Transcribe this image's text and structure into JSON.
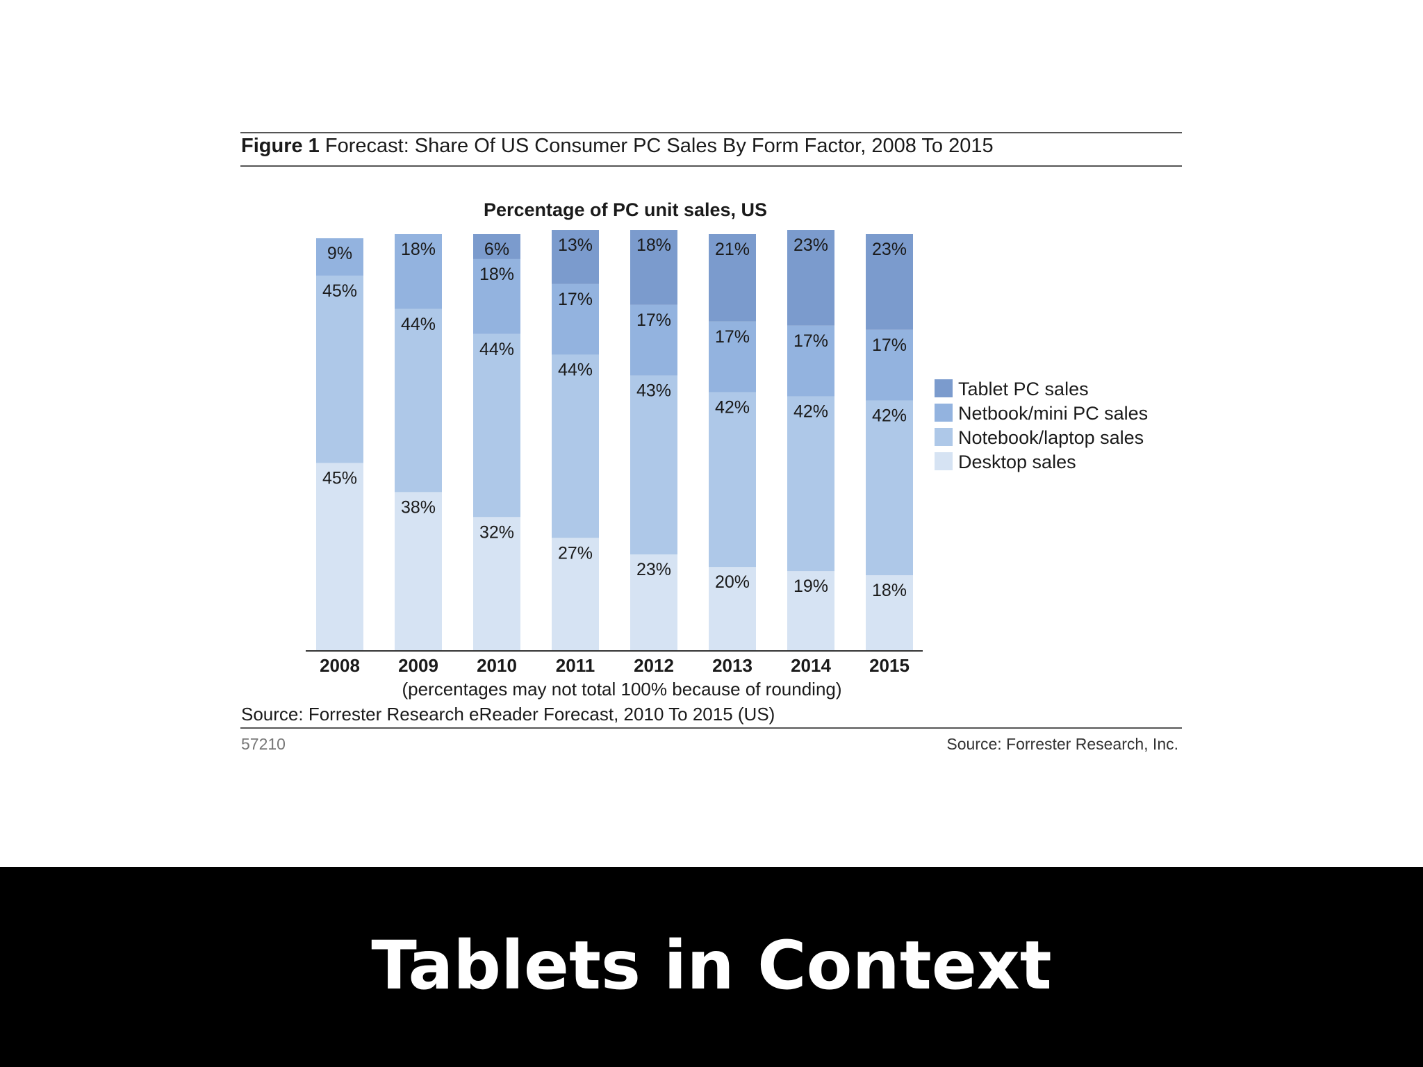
{
  "figure": {
    "label": "Figure 1",
    "title": "Forecast: Share Of US Consumer PC Sales By Form Factor, 2008 To 2015",
    "rounding_note": "(percentages may not total 100% because of rounding)",
    "source_line": "Source: Forrester Research eReader Forecast, 2010 To 2015 (US)",
    "figure_id": "57210",
    "source_credit": "Source: Forrester Research, Inc."
  },
  "slide": {
    "caption": "Tablets in Context"
  },
  "chart_data": {
    "type": "bar",
    "stacked": true,
    "title": "Percentage of PC unit sales, US",
    "xlabel": "",
    "ylabel": "",
    "ylim": [
      0,
      100
    ],
    "grid": false,
    "legend_position": "right",
    "value_suffix": "%",
    "categories": [
      "2008",
      "2009",
      "2010",
      "2011",
      "2012",
      "2013",
      "2014",
      "2015"
    ],
    "series": [
      {
        "name": "Desktop sales",
        "color": "#d6e3f3",
        "values": [
          45,
          38,
          32,
          27,
          23,
          20,
          19,
          18
        ]
      },
      {
        "name": "Notebook/laptop sales",
        "color": "#aec8e8",
        "values": [
          45,
          44,
          44,
          44,
          43,
          42,
          42,
          42
        ]
      },
      {
        "name": "Netbook/mini PC sales",
        "color": "#93b3df",
        "values": [
          9,
          18,
          18,
          17,
          17,
          17,
          17,
          17
        ]
      },
      {
        "name": "Tablet PC sales",
        "color": "#7b9bcd",
        "values": [
          0,
          0,
          6,
          13,
          18,
          21,
          23,
          23
        ]
      }
    ]
  }
}
